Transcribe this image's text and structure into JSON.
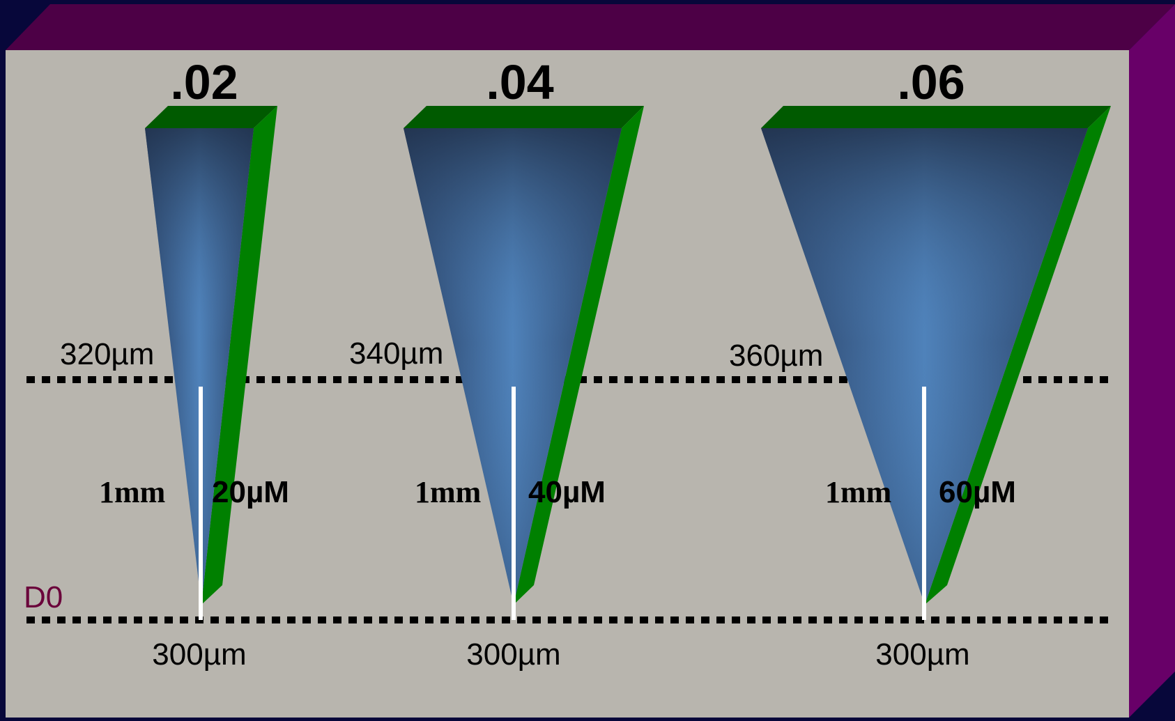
{
  "background_colors": {
    "page": "#07073a",
    "panel_face": "#b8b5ae",
    "panel_top": "#4d0046",
    "panel_side": "#680068",
    "taper_green_top": "#005a00",
    "taper_green_side": "#008000",
    "taper_blue_light": "#4f82ba",
    "taper_blue_dark": "#263b5e",
    "d0_label": "#6a003a"
  },
  "files": [
    {
      "taper": ".02",
      "top_diameter": "320µm",
      "tip_diameter": "300µm",
      "length": "1mm",
      "increase": "20µM"
    },
    {
      "taper": ".04",
      "top_diameter": "340µm",
      "tip_diameter": "300µm",
      "length": "1mm",
      "increase": "40µM"
    },
    {
      "taper": ".06",
      "top_diameter": "360µm",
      "tip_diameter": "300µm",
      "length": "1mm",
      "increase": "60µM"
    }
  ],
  "d0_label": "D0"
}
